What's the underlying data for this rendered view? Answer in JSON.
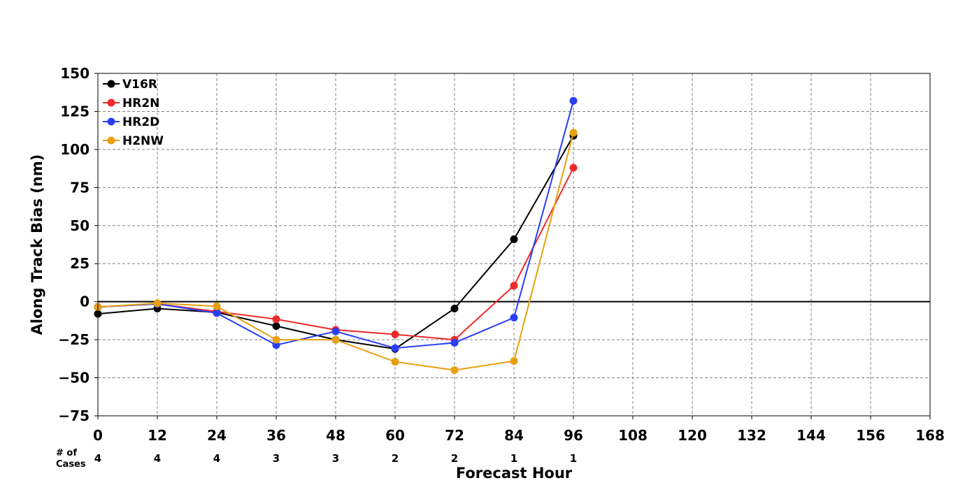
{
  "chart_data": {
    "type": "line",
    "xlabel": "Forecast Hour",
    "ylabel": "Along Track Bias (nm)",
    "xlim": [
      0,
      168
    ],
    "ylim": [
      -75,
      150
    ],
    "x_ticks": [
      0,
      12,
      24,
      36,
      48,
      60,
      72,
      84,
      96,
      108,
      120,
      132,
      144,
      156,
      168
    ],
    "x_tick_labels": [
      "0",
      "12",
      "24",
      "36",
      "48",
      "60",
      "72",
      "84",
      "96",
      "108",
      "120",
      "132",
      "144",
      "156",
      "168"
    ],
    "y_ticks": [
      -75,
      -50,
      -25,
      0,
      25,
      50,
      75,
      100,
      125,
      150
    ],
    "y_tick_labels": [
      "−75",
      "−50",
      "−25",
      "0",
      "25",
      "50",
      "75",
      "100",
      "125",
      "150"
    ],
    "grid": true,
    "zero_line": true,
    "legend_position": "top-left",
    "cases_label": "# of\nCases",
    "cases_label_lines": [
      "# of",
      "Cases"
    ],
    "cases": {
      "x": [
        0,
        12,
        24,
        36,
        48,
        60,
        72,
        84,
        96
      ],
      "labels": [
        "4",
        "4",
        "4",
        "3",
        "3",
        "2",
        "2",
        "1",
        "1"
      ]
    },
    "series": [
      {
        "name": "V16R",
        "color": "#000000",
        "x": [
          0,
          12,
          24,
          36,
          48,
          60,
          72,
          84,
          96
        ],
        "values": [
          -8,
          -4.5,
          -7,
          -16,
          -25,
          -31,
          -4.5,
          41,
          109
        ]
      },
      {
        "name": "HR2N",
        "color": "#ee2a2a",
        "x": [
          0,
          12,
          24,
          36,
          48,
          60,
          72,
          84,
          96
        ],
        "values": [
          -3.5,
          -1.5,
          -6.5,
          -11.5,
          -18.5,
          -21.5,
          -25,
          10.5,
          88
        ]
      },
      {
        "name": "HR2D",
        "color": "#2a3ff5",
        "x": [
          0,
          12,
          24,
          36,
          48,
          60,
          72,
          84,
          96
        ],
        "values": [
          -3.5,
          -1.5,
          -7.5,
          -28.5,
          -19.5,
          -30.5,
          -27,
          -10.5,
          132
        ]
      },
      {
        "name": "H2NW",
        "color": "#e8a010",
        "x": [
          0,
          12,
          24,
          36,
          48,
          60,
          72,
          84,
          96
        ],
        "values": [
          -3.5,
          -1,
          -3,
          -25,
          -25,
          -39.5,
          -45,
          -39,
          111
        ]
      }
    ]
  }
}
